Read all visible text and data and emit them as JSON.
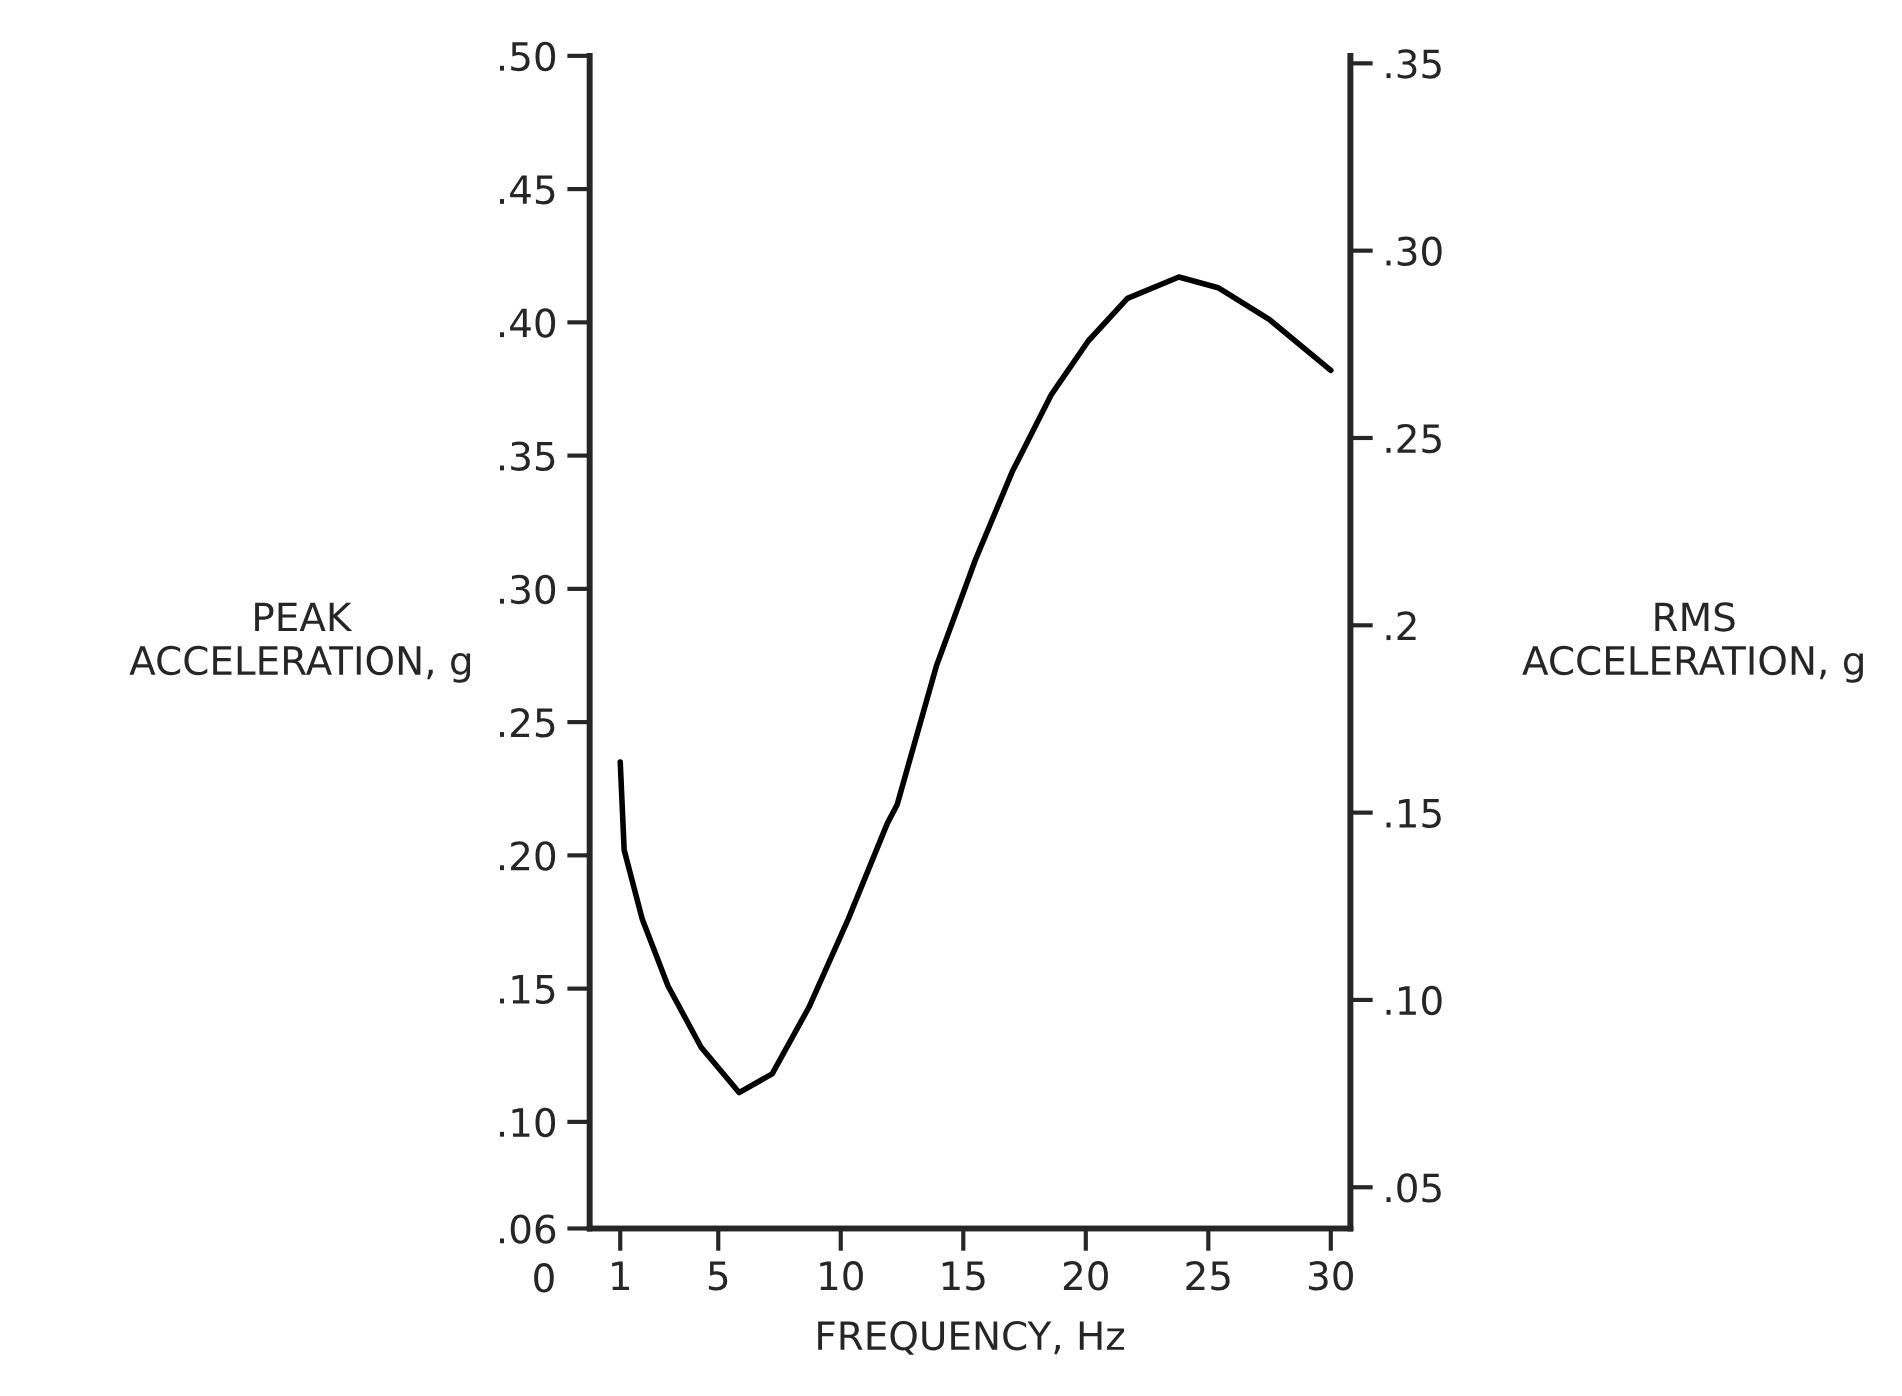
{
  "chart_data": {
    "type": "line",
    "xlabel": "FREQUENCY, Hz",
    "ylabel": "PEAK\nACCELERATION, g",
    "y2label": "RMS\nACCELERATION, g",
    "annotations": [
      "0"
    ],
    "x": [
      1,
      1.16,
      1.9,
      2.95,
      4.3,
      5.85,
      7.2,
      8.7,
      10.3,
      11.9,
      12.3,
      13.9,
      15.5,
      17.0,
      18.6,
      20.1,
      21.7,
      23.8,
      25.4,
      27.5,
      30
    ],
    "series": [
      {
        "color": "#000000",
        "values": [
          0.235,
          0.202,
          0.176,
          0.151,
          0.128,
          0.111,
          0.118,
          0.143,
          0.176,
          0.212,
          0.219,
          0.271,
          0.311,
          0.344,
          0.373,
          0.393,
          0.409,
          0.417,
          0.413,
          0.401,
          0.382
        ]
      }
    ],
    "xlim": [
      -0.25,
      30.8
    ],
    "xticks": [
      1,
      5,
      10,
      15,
      20,
      25,
      30
    ],
    "ylim": [
      0.06,
      0.5
    ],
    "yticks": [
      {
        "value": 0.06,
        "label": ".06"
      },
      {
        "value": 0.1,
        "label": ".10"
      },
      {
        "value": 0.15,
        "label": ".15"
      },
      {
        "value": 0.2,
        "label": ".20"
      },
      {
        "value": 0.25,
        "label": ".25"
      },
      {
        "value": 0.3,
        "label": ".30"
      },
      {
        "value": 0.35,
        "label": ".35"
      },
      {
        "value": 0.4,
        "label": ".40"
      },
      {
        "value": 0.45,
        "label": ".45"
      },
      {
        "value": 0.5,
        "label": ".50"
      }
    ],
    "y2lim": [
      0.039,
      0.352
    ],
    "y2ticks": [
      {
        "value": 0.05,
        "label": ".05"
      },
      {
        "value": 0.1,
        "label": ".10"
      },
      {
        "value": 0.15,
        "label": ".15"
      },
      {
        "value": 0.2,
        "label": ".2"
      },
      {
        "value": 0.25,
        "label": ".25"
      },
      {
        "value": 0.3,
        "label": ".30"
      },
      {
        "value": 0.35,
        "label": ".35"
      }
    ],
    "grid": false,
    "legend": false
  }
}
